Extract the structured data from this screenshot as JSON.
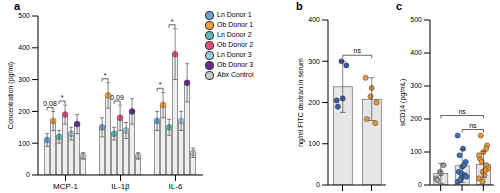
{
  "chart_data": [
    {
      "type": "bar",
      "title": "a",
      "categories": [
        "MCP-1",
        "IL-1β",
        "IL-6"
      ],
      "ylabel": "Concentration (pg/ml)",
      "ylim": [
        0,
        500
      ],
      "yticks": [
        0,
        100,
        200,
        300,
        400,
        500
      ],
      "legend": "right",
      "series": [
        {
          "name": "Ln Donor 1",
          "color": "#6f9fd8",
          "values": [
            110,
            150,
            170
          ],
          "errors": [
            20,
            30,
            30
          ]
        },
        {
          "name": "Ob Donor 1",
          "color": "#f0a040",
          "values": [
            170,
            250,
            220
          ],
          "errors": [
            30,
            40,
            40
          ]
        },
        {
          "name": "Ln Donor 2",
          "color": "#5fb8b8",
          "values": [
            120,
            130,
            150
          ],
          "errors": [
            20,
            20,
            25
          ]
        },
        {
          "name": "Ob Donor 2",
          "color": "#e8507a",
          "values": [
            190,
            180,
            380
          ],
          "errors": [
            30,
            40,
            80
          ]
        },
        {
          "name": "Ln Donor 3",
          "color": "#9ecae1",
          "values": [
            130,
            140,
            170
          ],
          "errors": [
            20,
            25,
            30
          ]
        },
        {
          "name": "Ob Donor 3",
          "color": "#6a2c91",
          "values": [
            160,
            200,
            290
          ],
          "errors": [
            30,
            40,
            60
          ]
        },
        {
          "name": "Abx Control",
          "color": "#c8c8c8",
          "values": [
            60,
            60,
            70
          ],
          "errors": [
            10,
            10,
            15
          ]
        }
      ],
      "annotations": [
        {
          "text": "0.08",
          "category": "MCP-1",
          "from": "Ln Donor 1",
          "to": "Ob Donor 1"
        },
        {
          "text": "*",
          "category": "MCP-1",
          "from": "Ln Donor 2",
          "to": "Ob Donor 2"
        },
        {
          "text": "*",
          "category": "IL-1β",
          "from": "Ln Donor 1",
          "to": "Ob Donor 1"
        },
        {
          "text": "0.09",
          "category": "IL-1β",
          "from": "Ln Donor 2",
          "to": "Ob Donor 2"
        },
        {
          "text": "*",
          "category": "IL-6",
          "from": "Ln Donor 1",
          "to": "Ob Donor 1"
        },
        {
          "text": "*",
          "category": "IL-6",
          "from": "Ln Donor 2",
          "to": "Ob Donor 2"
        }
      ]
    },
    {
      "type": "bar",
      "title": "b",
      "categories": [
        null,
        null
      ],
      "ylabel": "ng/ml FITC dextran in serum",
      "ylim": [
        0,
        400
      ],
      "yticks": [
        0,
        100,
        200,
        300,
        400
      ],
      "tick_labels": "y",
      "values": [
        238,
        208
      ],
      "errors": [
        62,
        52
      ],
      "colors": [
        "#3b5ba5",
        "#e8963a"
      ],
      "points": [
        [
          205,
          300,
          290,
          190,
          210
        ],
        [
          260,
          215,
          150,
          160,
          235,
          200
        ]
      ],
      "annotations": [
        {
          "text": "ns",
          "from": 0,
          "to": 1
        }
      ]
    },
    {
      "type": "bar",
      "title": "c",
      "categories": [
        null,
        null,
        null
      ],
      "ylabel": "sCD14 (pg/mL)",
      "ylim": [
        0,
        500
      ],
      "yticks": [
        0,
        100,
        200,
        300,
        400,
        500
      ],
      "tick_labels": "y",
      "values": [
        35,
        58,
        62
      ],
      "errors": [
        30,
        50,
        40
      ],
      "colors": [
        "#a0a0a0",
        "#3f6fb5",
        "#e8963a"
      ],
      "points": [
        [
          20,
          40,
          60,
          15,
          35
        ],
        [
          10,
          20,
          30,
          40,
          55,
          70,
          90,
          110,
          25,
          15,
          60,
          150,
          35
        ],
        [
          20,
          40,
          60,
          80,
          100,
          120,
          150,
          30,
          50,
          70,
          45,
          90,
          10,
          110
        ]
      ],
      "annotations": [
        {
          "text": "ns",
          "from": 0,
          "to": 2
        },
        {
          "text": "ns",
          "from": 1,
          "to": 2
        }
      ]
    }
  ]
}
